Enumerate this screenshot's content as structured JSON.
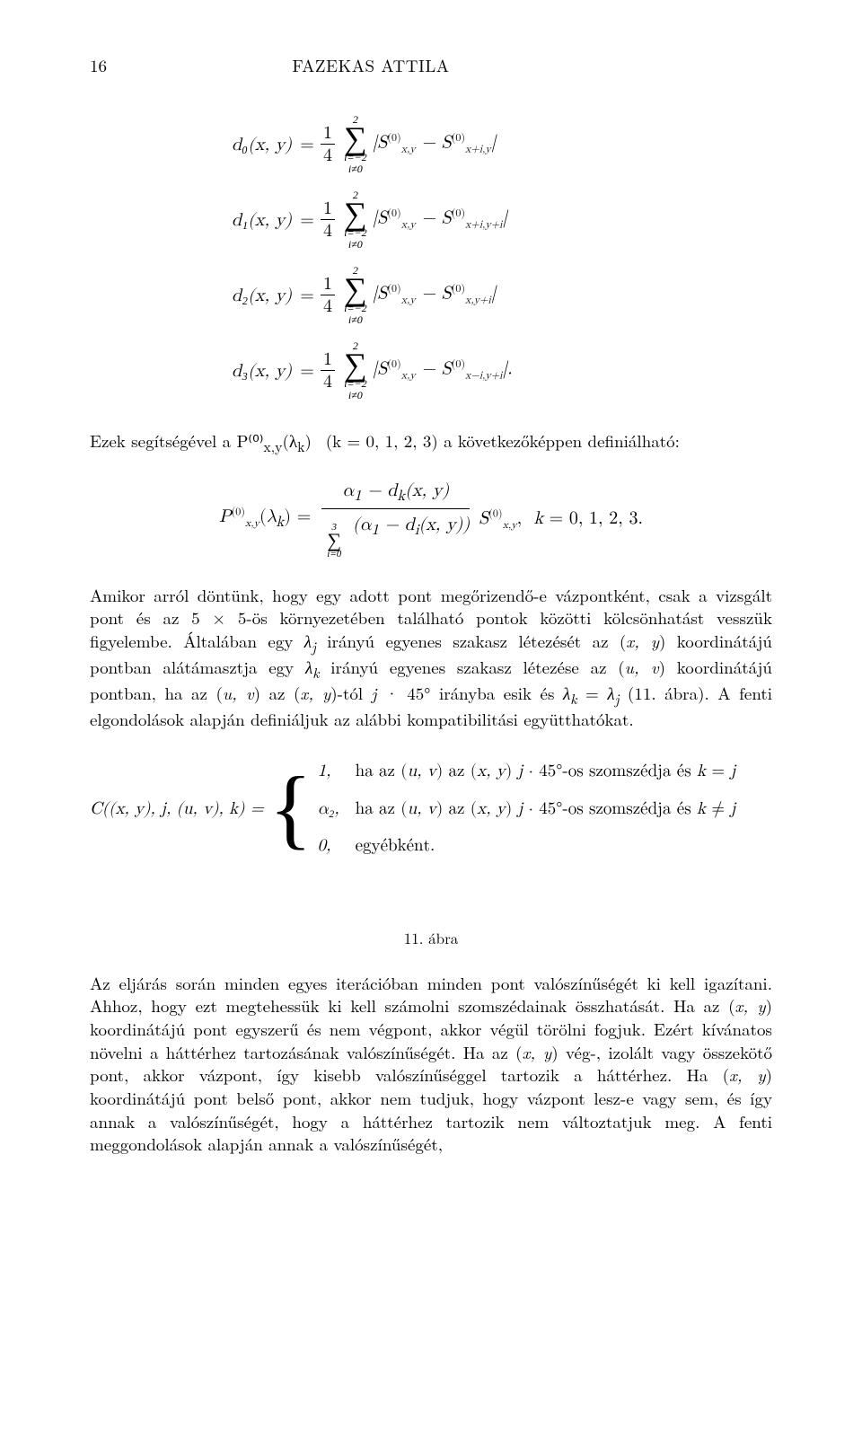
{
  "page_number": "16",
  "author_header": "FAZEKAS ATTILA",
  "equations": {
    "coeff": "1",
    "coeff_den": "4",
    "sum_upper": "2",
    "sum_lower_a": "i=−2",
    "sum_lower_b": "i≠0",
    "d": [
      {
        "lhs": "d₀(x, y)",
        "rhs_html": "|<i>S</i><span class='sup'>(0)</span><span class='sub'>x,y</span> − <i>S</i><span class='sup'>(0)</span><span class='sub'>x+i,y</span>|"
      },
      {
        "lhs": "d₁(x, y)",
        "rhs_html": "|<i>S</i><span class='sup'>(0)</span><span class='sub'>x,y</span> − <i>S</i><span class='sup'>(0)</span><span class='sub'>x+i,y+i</span>|"
      },
      {
        "lhs": "d₂(x, y)",
        "rhs_html": "|<i>S</i><span class='sup'>(0)</span><span class='sub'>x,y</span> − <i>S</i><span class='sup'>(0)</span><span class='sub'>x,y+i</span>|"
      },
      {
        "lhs": "d₃(x, y)",
        "rhs_html": "|<i>S</i><span class='sup'>(0)</span><span class='sub'>x,y</span> − <i>S</i><span class='sup'>(0)</span><span class='sub'>x−i,y+i</span>|."
      }
    ]
  },
  "para_before_P": "Ezek segítségével a P⁽⁰⁾<sub>x,y</sub>(λ<sub>k</sub>) &nbsp;(k = 0, 1, 2, 3) a következőképpen definiálható:",
  "P_formula": {
    "lhs_html": "<i>P</i><span class='sup'>(0)</span><span class='sub'>x,y</span>(<i>λ<sub>k</sub></i>) =",
    "num_html": "α<sub>1</sub> − d<sub>k</sub>(x, y)",
    "den_upper": "3",
    "den_lower": "i=0",
    "den_expr_html": "(α<sub>1</sub> − d<sub>i</sub>(x, y))",
    "tail_html": "<i>S</i><span class='sup'>(0)</span><span class='sub'>x,y</span>, &nbsp;<i>k</i> = 0, 1, 2, 3."
  },
  "para_amikor": "Amikor arról döntünk, hogy egy adott pont megőrizendő-e vázpontként, csak a vizsgált pont és az 5 × 5-ös környezetében található pontok közötti kölcsönhatást vesszük figyelembe. Általában egy <i>λ<sub>j</sub></i> irányú egyenes szakasz létezését az (<i>x, y</i>) koordinátájú pontban alátámasztja egy <i>λ<sub>k</sub></i> irányú egyenes szakasz létezése az (<i>u, v</i>) koordinátájú pontban, ha az (<i>u, v</i>) az (<i>x, y</i>)-tól <i>j</i> · 45° irányba esik és <i>λ<sub>k</sub></i> = <i>λ<sub>j</sub></i> (11. ábra). A fenti elgondolások alapján definiáljuk az alábbi kompatibilitási együtthatókat.",
  "cases": {
    "lhs": "C((x, y), j, (u, v), k) =",
    "rows": [
      {
        "val": "1,",
        "cond": "ha az (<i>u, v</i>) az (<i>x, y</i>) <i>j</i> · 45°-os szomszédja és <i>k</i> = <i>j</i>"
      },
      {
        "val": "α₂,",
        "cond": "ha az (<i>u, v</i>) az (<i>x, y</i>) <i>j</i> · 45°-os szomszédja és <i>k</i> ≠ <i>j</i>"
      },
      {
        "val": "0,",
        "cond": "egyébként."
      }
    ]
  },
  "figure_caption": "11. ábra",
  "para_final": "Az eljárás során minden egyes iterációban minden pont valószínűségét ki kell igazítani. Ahhoz, hogy ezt megtehessük ki kell számolni szomszédainak összhatását. Ha az (<i>x, y</i>) koordinátájú pont egyszerű és nem végpont, akkor végül törölni fogjuk. Ezért kívánatos növelni a háttérhez tartozásának valószínűségét. Ha az (<i>x, y</i>) vég-, izolált vagy összekötő pont, akkor vázpont, így kisebb valószínűséggel tartozik a háttérhez. Ha (<i>x, y</i>) koordinátájú pont belső pont, akkor nem tudjuk, hogy vázpont lesz-e vagy sem, és így annak a valószínűségét, hogy a háttérhez tartozik nem változtatjuk meg. A fenti meggondolások alapján annak a valószínűségét,"
}
